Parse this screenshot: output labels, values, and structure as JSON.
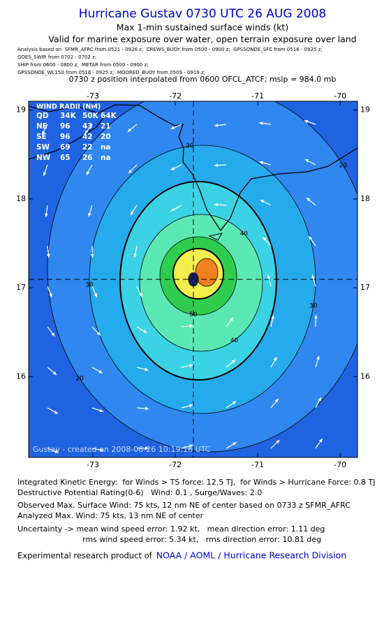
{
  "header": {
    "title": "Hurricane Gustav 0730 UTC 26 AUG 2008",
    "subtitle": "Max 1-min sustained surface winds (kt)",
    "valid": "Valid for marine exposure over water, open terrain exposure over land",
    "sources": [
      "Analysis based on  SFMR_AFRC from 0521 - 0926 z;  CREWS_BUOY from 0500 - 0900 z;  GPSSONDE_SFC from 0516 - 0925 z;",
      "GOES_SWIR from 0702 - 0702 z;",
      "SHIP from 0600 - 0800 z;  METAR from 0500 - 0900 z;",
      "GPSSONDE_WL150 from 0516 - 0925 z;  MOORED_BUOY from 0509 - 0919 z;"
    ],
    "position": "0730 z position interpolated from 0600 OFCL_ATCF; mslp = 984.0 mb"
  },
  "map": {
    "xlim": [
      -73.78,
      -69.79
    ],
    "ylim": [
      15.09,
      19.1
    ],
    "xticks": [
      -73,
      -72,
      -71,
      -70
    ],
    "yticks": [
      16,
      17,
      18,
      19
    ],
    "background_color": "#1f63e0",
    "contours": [
      {
        "level": 20,
        "color": "#2f87ef",
        "labeled": true
      },
      {
        "level": 30,
        "color": "#25aaec",
        "labeled": true
      },
      {
        "level": 34,
        "color": "#3cd2e6",
        "labeled": false
      },
      {
        "level": 40,
        "color": "#5ce8b4",
        "labeled": true
      },
      {
        "level": 50,
        "color": "#30cc50",
        "labeled": true
      },
      {
        "level": 64,
        "color": "#f2ee4c",
        "labeled": false
      },
      {
        "level": 70,
        "color": "#f08020",
        "labeled": false
      }
    ],
    "wind_radii": {
      "title": "WIND RADII (NM)",
      "columns": [
        "QD",
        "34K",
        "50K",
        "64K"
      ],
      "rows": [
        [
          "NE",
          96,
          43,
          21
        ],
        [
          "SE",
          96,
          42,
          20
        ],
        [
          "SW",
          69,
          22,
          "na"
        ],
        [
          "NW",
          65,
          26,
          "na"
        ]
      ]
    },
    "credit": "Gustav - created on 2008-08-26 10:19:16 UTC"
  },
  "footer": {
    "blocks": [
      [
        "Integrated Kinetic Energy:  for Winds > TS force: 12.5 TJ,  for Winds > Hurricane Force: 0.8 TJ",
        "Destructive Potential Rating(0-6)   Wind: 0.1 , Surge/Waves: 2.0"
      ],
      [
        "Observed Max. Surface Wind: 75 kts, 12 nm NE of center based on 0733 z SFMR_AFRC",
        "Analyzed Max. Wind: 75 kts, 13 nm NE of center"
      ],
      [
        "Uncertainty -> mean wind speed error: 1.92 kt,   mean direction error: 1.11 deg",
        "rms wind speed error: 5.34 kt,   rms direction error: 10.81 deg"
      ]
    ],
    "product": "Experimental research product of",
    "link": "NOAA / AOML / Hurricane Research Division"
  }
}
